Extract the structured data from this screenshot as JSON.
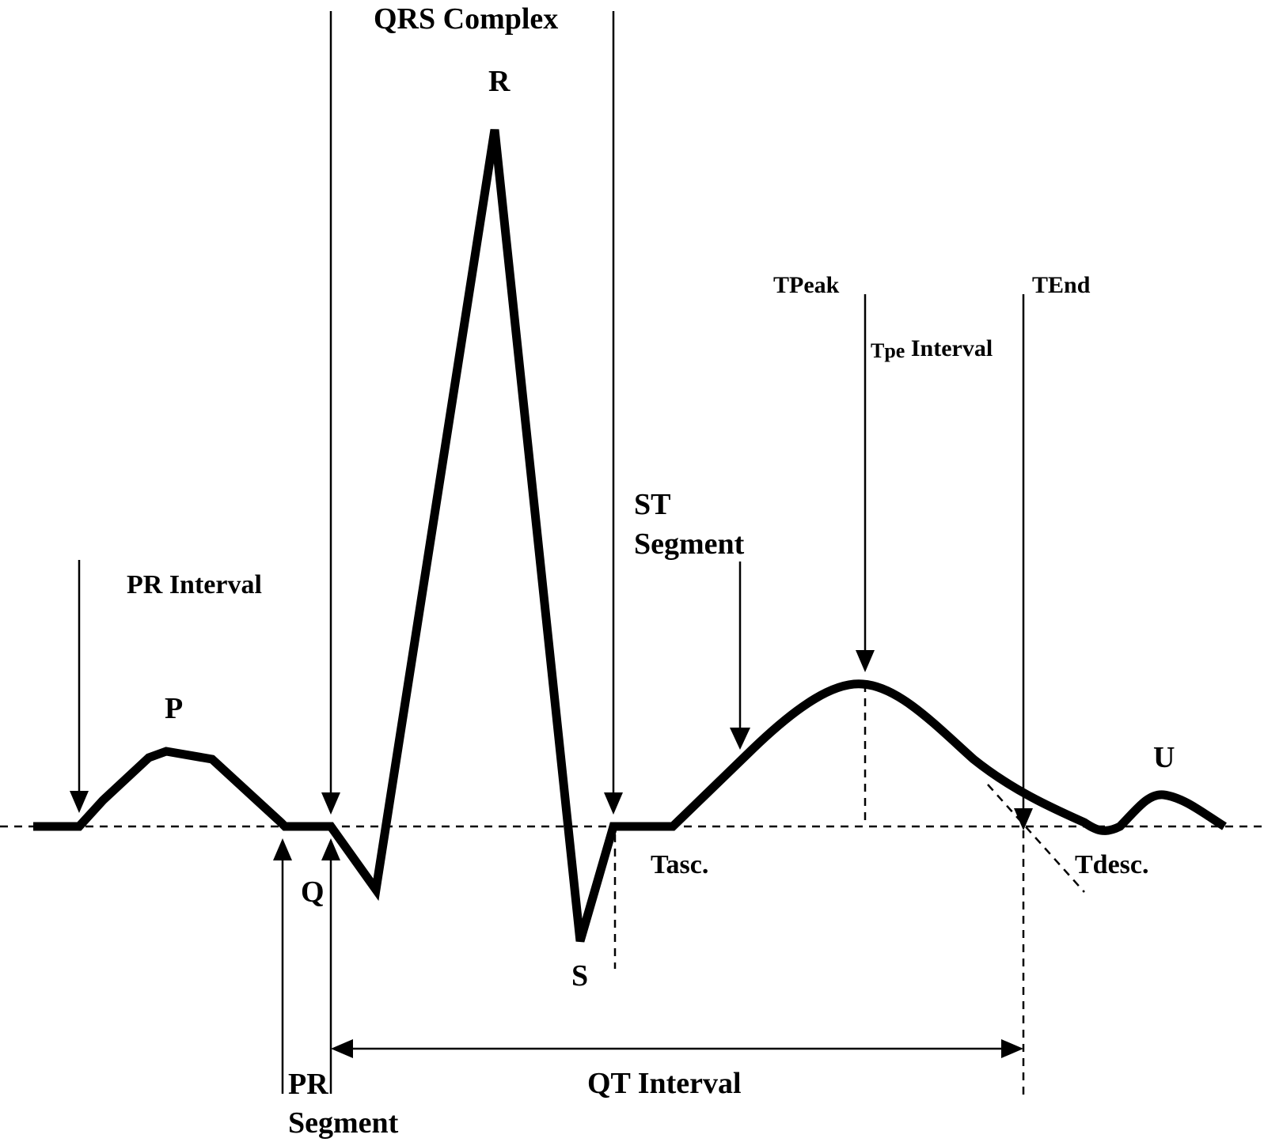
{
  "labels": {
    "qrs_complex": "QRS Complex",
    "r": "R",
    "p": "P",
    "q": "Q",
    "s": "S",
    "u": "U",
    "pr_interval": "PR Interval",
    "pr_segment_line1": "PR",
    "pr_segment_line2": "Segment",
    "st_segment_line1": "ST",
    "st_segment_line2": "Segment",
    "t_peak": "TPeak",
    "t_end": "TEnd",
    "tpe_prefix": "Tpe",
    "tpe_interval": " Interval",
    "t_asc": "Tasc.",
    "t_desc": "Tdesc.",
    "qt_interval": "QT Interval"
  }
}
